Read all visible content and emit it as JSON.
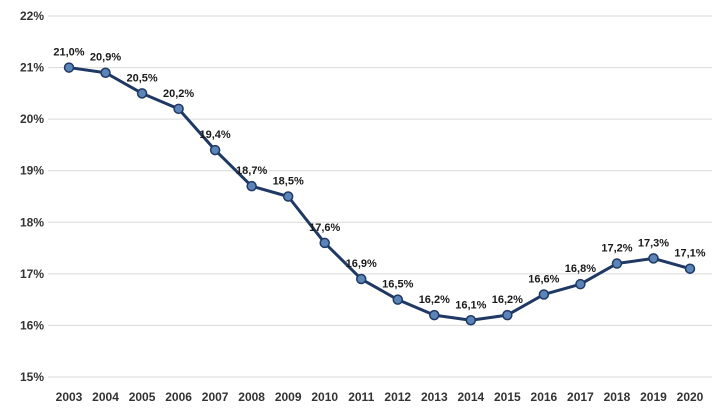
{
  "chart_data": {
    "type": "line",
    "title": "",
    "xlabel": "",
    "ylabel": "",
    "categories": [
      "2003",
      "2004",
      "2005",
      "2006",
      "2007",
      "2008",
      "2009",
      "2010",
      "2011",
      "2012",
      "2013",
      "2014",
      "2015",
      "2016",
      "2017",
      "2018",
      "2019",
      "2020"
    ],
    "values": [
      21.0,
      20.9,
      20.5,
      20.2,
      19.4,
      18.7,
      18.5,
      17.6,
      16.9,
      16.5,
      16.2,
      16.1,
      16.2,
      16.6,
      16.8,
      17.2,
      17.3,
      17.1
    ],
    "point_labels": [
      "21,0%",
      "20,9%",
      "20,5%",
      "20,2%",
      "19,4%",
      "18,7%",
      "18,5%",
      "17,6%",
      "16,9%",
      "16,5%",
      "16,2%",
      "16,1%",
      "16,2%",
      "16,6%",
      "16,8%",
      "17,2%",
      "17,3%",
      "17,1%"
    ],
    "ylim": [
      15,
      22
    ],
    "y_ticks": [
      {
        "value": 22,
        "label": "22%"
      },
      {
        "value": 21,
        "label": "21%"
      },
      {
        "value": 20,
        "label": "20%"
      },
      {
        "value": 19,
        "label": "19%"
      },
      {
        "value": 18,
        "label": "18%"
      },
      {
        "value": 17,
        "label": "17%"
      },
      {
        "value": 16,
        "label": "16%"
      },
      {
        "value": 15,
        "label": "15%"
      }
    ],
    "grid": true,
    "legend": false,
    "colors": {
      "line": "#1F3864",
      "marker_fill": "#5B84B9",
      "marker_stroke": "#1F3864",
      "grid": "#D9D9D9",
      "data_label_text": "#1A1A1A",
      "axis_text": "#333333",
      "background": "#FFFFFF"
    }
  }
}
